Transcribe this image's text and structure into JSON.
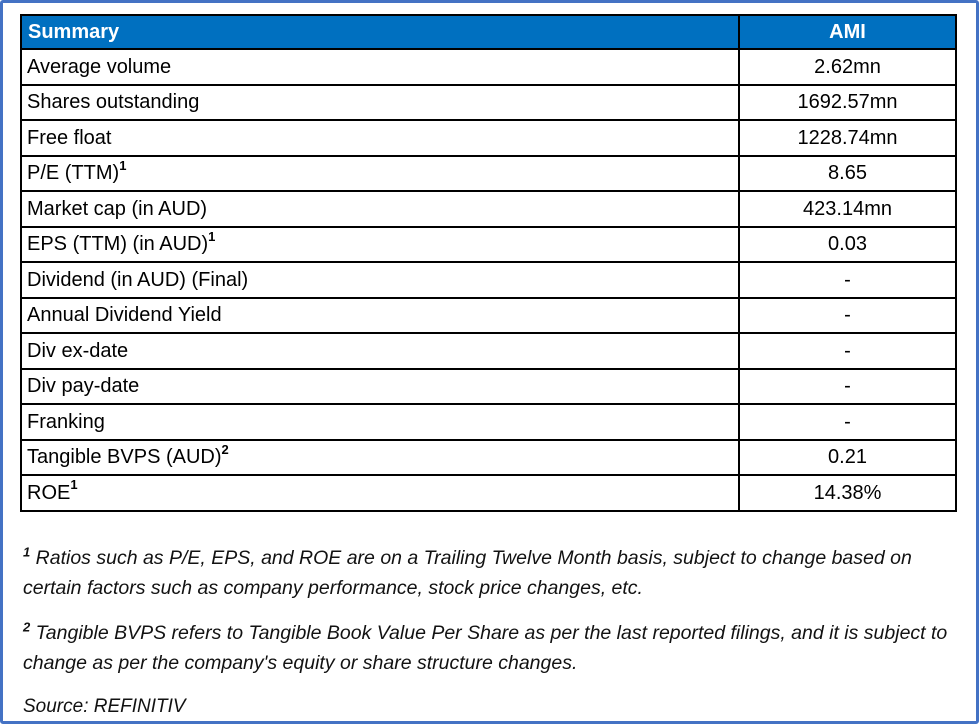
{
  "colors": {
    "header_bg": "#0070C0",
    "header_text": "#ffffff",
    "frame_border": "#4472C4",
    "table_border": "#000000",
    "body_text": "#000000"
  },
  "table": {
    "header": {
      "col1": "Summary",
      "col2": "AMI"
    },
    "rows": [
      {
        "label": "Average volume",
        "sup": "",
        "value": "2.62mn"
      },
      {
        "label": "Shares outstanding",
        "sup": "",
        "value": "1692.57mn"
      },
      {
        "label": "Free float",
        "sup": "",
        "value": "1228.74mn"
      },
      {
        "label": "P/E (TTM)",
        "sup": "1",
        "value": "8.65"
      },
      {
        "label": "Market cap (in AUD)",
        "sup": "",
        "value": "423.14mn"
      },
      {
        "label": "EPS (TTM) (in AUD)",
        "sup": "1",
        "value": "0.03"
      },
      {
        "label": "Dividend (in AUD) (Final)",
        "sup": "",
        "value": "-"
      },
      {
        "label": "Annual Dividend Yield",
        "sup": "",
        "value": "-"
      },
      {
        "label": "Div ex-date",
        "sup": "",
        "value": "-"
      },
      {
        "label": "Div pay-date",
        "sup": "",
        "value": "-"
      },
      {
        "label": "Franking",
        "sup": "",
        "value": "-"
      },
      {
        "label": "Tangible BVPS (AUD)",
        "sup": "2",
        "value": "0.21"
      },
      {
        "label": "ROE",
        "sup": "1",
        "value": "14.38%"
      }
    ]
  },
  "footnotes": [
    {
      "sup": "1",
      "text": "Ratios such as P/E, EPS, and ROE are on a Trailing Twelve Month basis, subject to change based on certain factors such as company performance, stock price changes, etc."
    },
    {
      "sup": "2",
      "text": "Tangible BVPS refers to Tangible Book Value Per Share as per the last reported filings, and it is subject to change as per the company's equity or share structure changes."
    }
  ],
  "source": "Source: REFINITIV"
}
